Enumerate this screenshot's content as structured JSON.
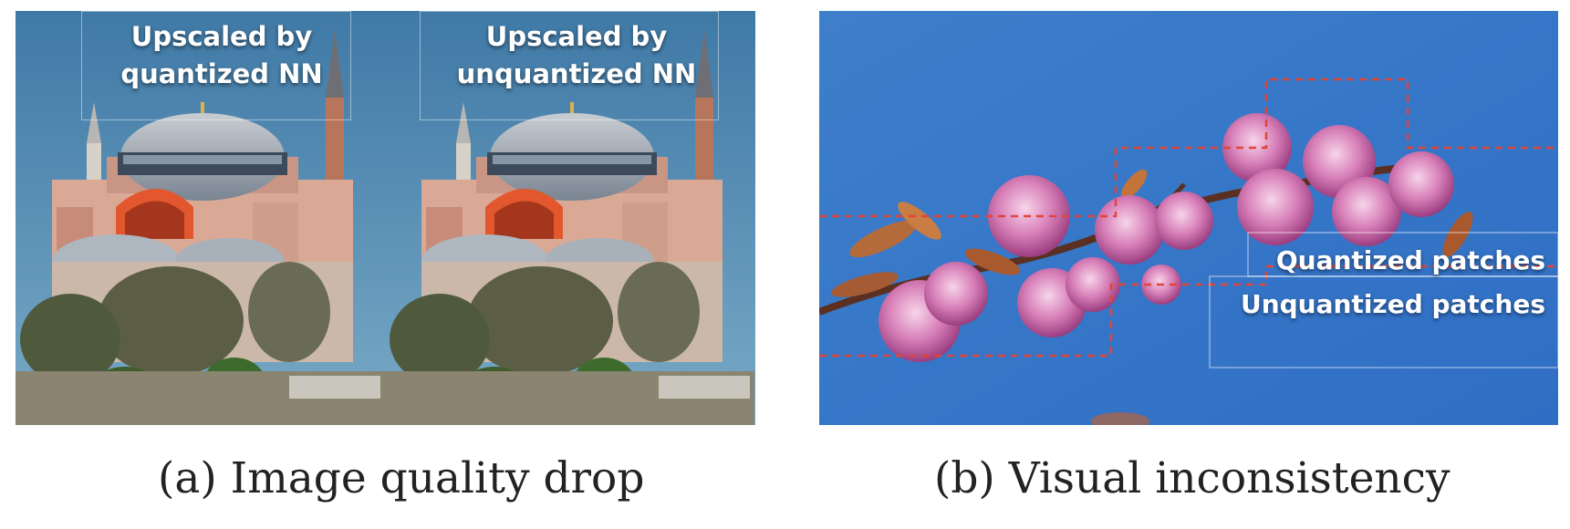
{
  "figure": {
    "panel_a": {
      "overlay_left": "Upscaled by quantized NN",
      "overlay_left_line1": "Upscaled by",
      "overlay_left_line2": "quantized NN",
      "overlay_right_line1": "Upscaled by",
      "overlay_right_line2": "unquantized NN",
      "caption_tag": "(a)",
      "caption_text": "Image quality drop"
    },
    "panel_b": {
      "legend_quantized": "Quantized patches",
      "legend_unquantized": "Unquantized patches",
      "caption_tag": "(b)",
      "caption_text": "Visual inconsistency"
    },
    "colors": {
      "sky_a": "#4a83ad",
      "sky_b": "#3f7fcc",
      "dashed_patch": "#e0453a",
      "blossom": "#d77fb8"
    }
  }
}
